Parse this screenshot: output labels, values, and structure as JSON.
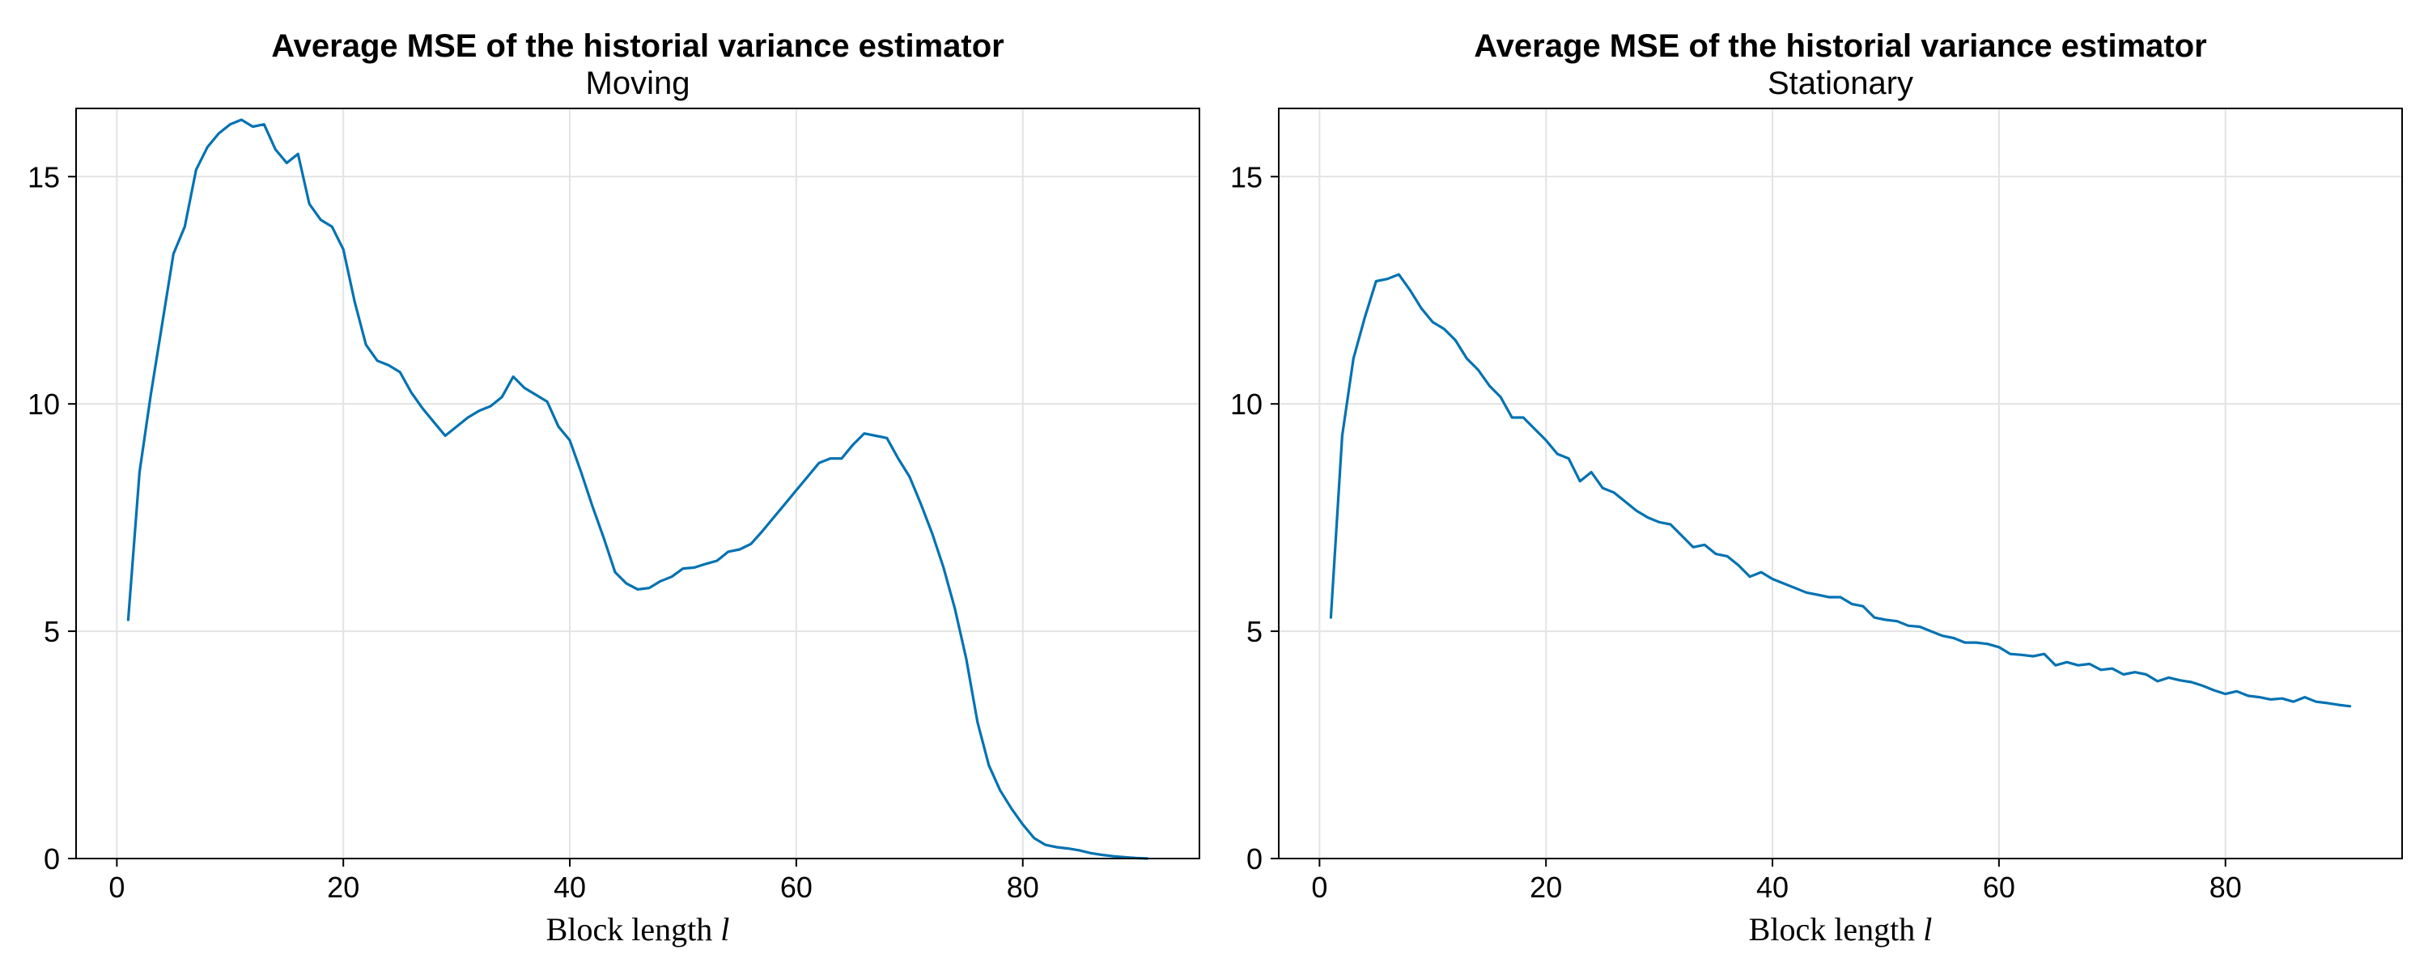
{
  "colors": {
    "series": "#0072b2",
    "grid": "#e3e3e3"
  },
  "chart_data": [
    {
      "type": "line",
      "title": "Average MSE of the historial variance estimator",
      "subtitle": "Moving",
      "xlabel": "Block length",
      "xlabel_var": "l",
      "ylabel": "",
      "xlim": [
        -3.6,
        95.6
      ],
      "ylim": [
        0,
        16.5
      ],
      "xticks": [
        0,
        20,
        40,
        60,
        80
      ],
      "yticks": [
        0,
        5,
        10,
        15
      ],
      "grid": true,
      "series": [
        {
          "color": "#0072b2",
          "x": [
            1,
            2,
            3,
            4,
            5,
            6,
            7,
            8,
            9,
            10,
            11,
            12,
            13,
            14,
            15,
            16,
            17,
            18,
            19,
            20,
            21,
            22,
            23,
            24,
            25,
            26,
            27,
            28,
            29,
            30,
            31,
            32,
            33,
            34,
            35,
            36,
            37,
            38,
            39,
            40,
            41,
            42,
            43,
            44,
            45,
            46,
            47,
            48,
            49,
            50,
            51,
            52,
            53,
            54,
            55,
            56,
            57,
            58,
            59,
            60,
            61,
            62,
            63,
            64,
            65,
            66,
            67,
            68,
            69,
            70,
            71,
            72,
            73,
            74,
            75,
            76,
            77,
            78,
            79,
            80,
            81,
            82,
            83,
            84,
            85,
            86,
            87,
            88,
            89,
            90,
            91
          ],
          "y": [
            5.25,
            8.5,
            10.2,
            11.75,
            13.3,
            13.9,
            15.15,
            15.65,
            15.95,
            16.15,
            16.25,
            16.1,
            16.15,
            15.6,
            15.3,
            15.5,
            14.4,
            14.05,
            13.9,
            13.4,
            12.25,
            11.3,
            10.95,
            10.85,
            10.7,
            10.25,
            9.9,
            9.6,
            9.3,
            9.5,
            9.7,
            9.85,
            9.95,
            10.15,
            10.6,
            10.35,
            10.2,
            10.05,
            9.5,
            9.2,
            8.5,
            7.75,
            7.05,
            6.3,
            6.05,
            5.92,
            5.95,
            6.1,
            6.2,
            6.38,
            6.4,
            6.48,
            6.55,
            6.75,
            6.8,
            6.92,
            7.2,
            7.5,
            7.8,
            8.1,
            8.4,
            8.7,
            8.8,
            8.8,
            9.1,
            9.35,
            9.3,
            9.25,
            8.8,
            8.4,
            7.8,
            7.15,
            6.4,
            5.5,
            4.4,
            3.0,
            2.05,
            1.5,
            1.1,
            0.75,
            0.45,
            0.3,
            0.25,
            0.22,
            0.18,
            0.12,
            0.08,
            0.05,
            0.03,
            0.01,
            0.0
          ]
        }
      ]
    },
    {
      "type": "line",
      "title": "Average MSE of the historial variance estimator",
      "subtitle": "Stationary",
      "xlabel": "Block length",
      "xlabel_var": "l",
      "ylabel": "",
      "xlim": [
        -3.6,
        95.6
      ],
      "ylim": [
        0,
        16.5
      ],
      "xticks": [
        0,
        20,
        40,
        60,
        80
      ],
      "yticks": [
        0,
        5,
        10,
        15
      ],
      "grid": true,
      "series": [
        {
          "color": "#0072b2",
          "x": [
            1,
            2,
            3,
            4,
            5,
            6,
            7,
            8,
            9,
            10,
            11,
            12,
            13,
            14,
            15,
            16,
            17,
            18,
            19,
            20,
            21,
            22,
            23,
            24,
            25,
            26,
            27,
            28,
            29,
            30,
            31,
            32,
            33,
            34,
            35,
            36,
            37,
            38,
            39,
            40,
            41,
            42,
            43,
            44,
            45,
            46,
            47,
            48,
            49,
            50,
            51,
            52,
            53,
            54,
            55,
            56,
            57,
            58,
            59,
            60,
            61,
            62,
            63,
            64,
            65,
            66,
            67,
            68,
            69,
            70,
            71,
            72,
            73,
            74,
            75,
            76,
            77,
            78,
            79,
            80,
            81,
            82,
            83,
            84,
            85,
            86,
            87,
            88,
            89,
            90,
            91
          ],
          "y": [
            5.3,
            9.3,
            11.0,
            11.9,
            12.7,
            12.75,
            12.85,
            12.5,
            12.1,
            11.8,
            11.65,
            11.4,
            11.0,
            10.75,
            10.4,
            10.15,
            9.7,
            9.7,
            9.45,
            9.2,
            8.9,
            8.8,
            8.3,
            8.5,
            8.15,
            8.05,
            7.85,
            7.65,
            7.5,
            7.4,
            7.35,
            7.1,
            6.85,
            6.9,
            6.7,
            6.65,
            6.45,
            6.2,
            6.3,
            6.15,
            6.05,
            5.95,
            5.85,
            5.8,
            5.75,
            5.75,
            5.6,
            5.55,
            5.3,
            5.25,
            5.22,
            5.12,
            5.1,
            5.0,
            4.9,
            4.85,
            4.75,
            4.75,
            4.72,
            4.65,
            4.5,
            4.48,
            4.45,
            4.5,
            4.25,
            4.32,
            4.25,
            4.28,
            4.15,
            4.18,
            4.05,
            4.1,
            4.05,
            3.9,
            3.98,
            3.92,
            3.88,
            3.8,
            3.7,
            3.62,
            3.68,
            3.58,
            3.55,
            3.5,
            3.52,
            3.45,
            3.55,
            3.45,
            3.42,
            3.38,
            3.35
          ]
        }
      ]
    }
  ]
}
